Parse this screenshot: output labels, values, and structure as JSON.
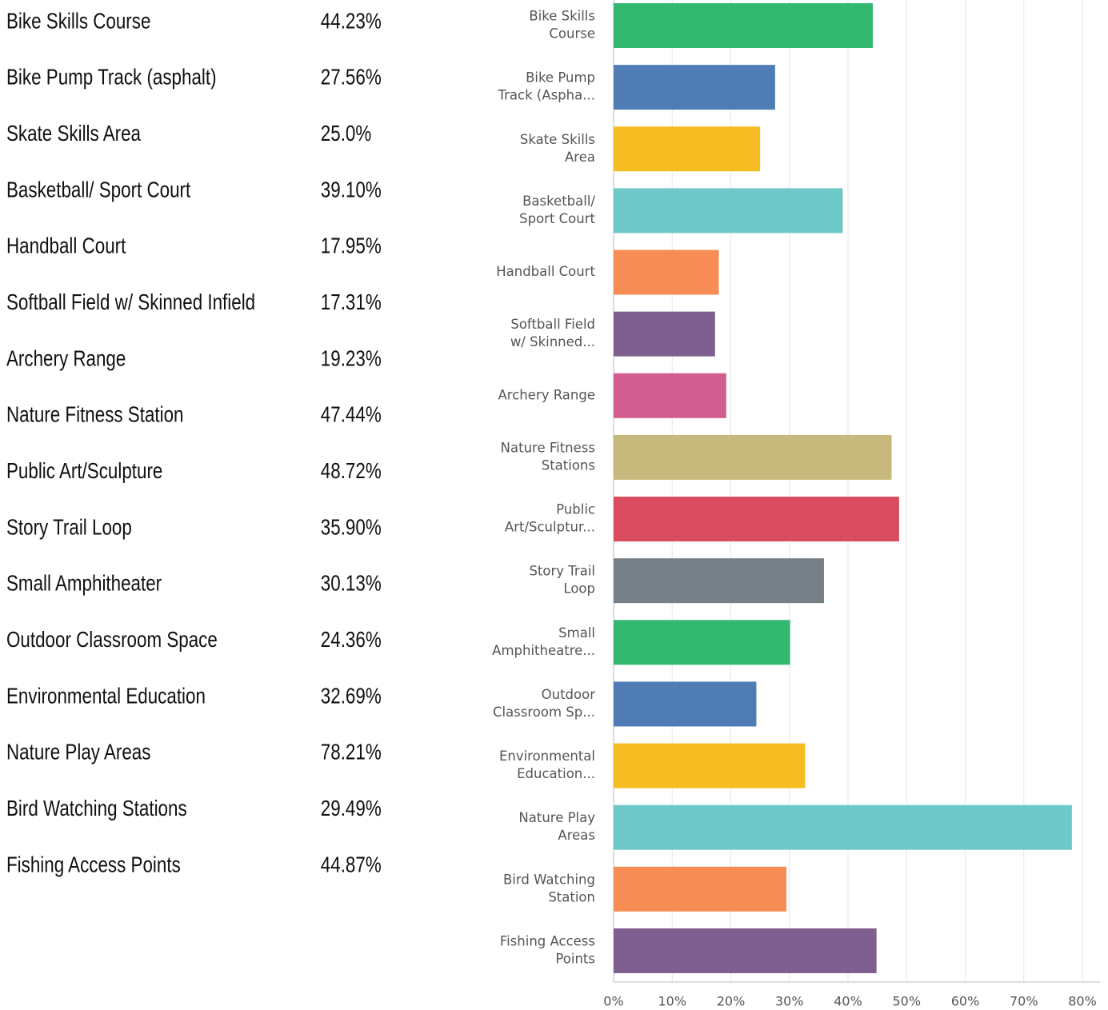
{
  "table": {
    "rows": [
      {
        "label": "Bike Skills Course",
        "value": "44.23%"
      },
      {
        "label": "Bike Pump Track (asphalt)",
        "value": "27.56%"
      },
      {
        "label": "Skate Skills Area",
        "value": "25.0%"
      },
      {
        "label": "Basketball/ Sport Court",
        "value": "39.10%"
      },
      {
        "label": "Handball Court",
        "value": "17.95%"
      },
      {
        "label": "Softball Field w/ Skinned Infield",
        "value": "17.31%"
      },
      {
        "label": "Archery Range",
        "value": "19.23%"
      },
      {
        "label": "Nature Fitness Station",
        "value": "47.44%"
      },
      {
        "label": "Public Art/Sculpture",
        "value": "48.72%"
      },
      {
        "label": "Story Trail Loop",
        "value": "35.90%"
      },
      {
        "label": "Small Amphitheater",
        "value": "30.13%"
      },
      {
        "label": "Outdoor Classroom Space",
        "value": "24.36%"
      },
      {
        "label": "Environmental Education",
        "value": "32.69%"
      },
      {
        "label": "Nature Play Areas",
        "value": "78.21%"
      },
      {
        "label": "Bird Watching Stations",
        "value": "29.49%"
      },
      {
        "label": "Fishing Access Points",
        "value": "44.87%"
      }
    ]
  },
  "chart_data": {
    "type": "bar",
    "orientation": "horizontal",
    "categories": [
      [
        "Bike Skills",
        "Course"
      ],
      [
        "Bike Pump",
        "Track (Aspha..."
      ],
      [
        "Skate Skills",
        "Area"
      ],
      [
        "Basketball/",
        "Sport Court"
      ],
      [
        "Handball Court"
      ],
      [
        "Softball Field",
        "w/ Skinned..."
      ],
      [
        "Archery Range"
      ],
      [
        "Nature Fitness",
        "Stations"
      ],
      [
        "Public",
        "Art/Sculptur..."
      ],
      [
        "Story Trail",
        "Loop"
      ],
      [
        "Small",
        "Amphitheatre..."
      ],
      [
        "Outdoor",
        "Classroom Sp..."
      ],
      [
        "Environmental",
        "Education..."
      ],
      [
        "Nature Play",
        "Areas"
      ],
      [
        "Bird Watching",
        "Station"
      ],
      [
        "Fishing Access",
        "Points"
      ]
    ],
    "values": [
      44.23,
      27.56,
      25.0,
      39.1,
      17.95,
      17.31,
      19.23,
      47.44,
      48.72,
      35.9,
      30.13,
      24.36,
      32.69,
      78.21,
      29.49,
      44.87
    ],
    "colors": [
      "#33b872",
      "#507cb6",
      "#f5bd22",
      "#6ec8c8",
      "#f78d55",
      "#7f5f8f",
      "#d15d8f",
      "#c7b87b",
      "#d94b5e",
      "#778087",
      "#33b872",
      "#507cb6",
      "#f5bd22",
      "#6ec8c8",
      "#f78d55",
      "#7f5f8f"
    ],
    "xlim": [
      0,
      80
    ],
    "xticks": [
      {
        "value": 0,
        "label": "0%"
      },
      {
        "value": 10,
        "label": "10%"
      },
      {
        "value": 20,
        "label": "20%"
      },
      {
        "value": 30,
        "label": "30%"
      },
      {
        "value": 40,
        "label": "40%"
      },
      {
        "value": 50,
        "label": "50%"
      },
      {
        "value": 60,
        "label": "60%"
      },
      {
        "value": 70,
        "label": "70%"
      },
      {
        "value": 80,
        "label": "80%"
      }
    ],
    "grid": true
  }
}
